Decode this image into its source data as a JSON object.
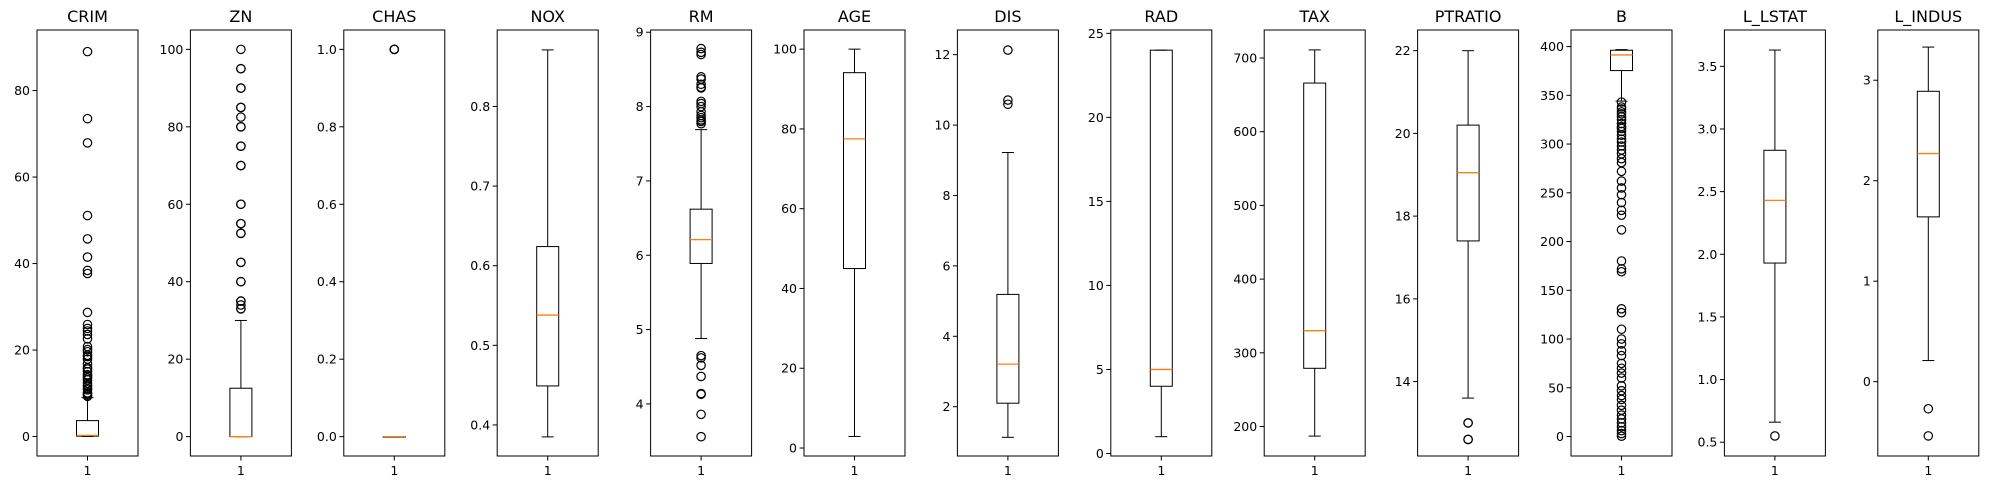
{
  "chart_data": [
    {
      "type": "box",
      "title": "CRIM",
      "x_tick_labels": [
        "1"
      ],
      "ylim": [
        -4.5,
        94
      ],
      "yticks": [
        0,
        20,
        40,
        60,
        80
      ],
      "box": {
        "whislo": 0.01,
        "q1": 0.08,
        "median": 0.26,
        "q3": 3.68,
        "whishi": 8.98
      },
      "fliers": [
        89.0,
        73.5,
        67.9,
        51.1,
        45.7,
        41.5,
        38.4,
        37.7,
        28.7,
        25.9,
        25.0,
        24.4,
        23.6,
        22.6,
        20.8,
        20.1,
        19.6,
        18.8,
        18.5,
        17.9,
        16.8,
        15.9,
        15.6,
        15.0,
        14.3,
        14.0,
        13.5,
        13.1,
        12.3,
        11.9,
        11.6,
        11.1,
        10.8,
        10.1,
        9.9,
        9.6,
        9.3
      ]
    },
    {
      "type": "box",
      "title": "ZN",
      "x_tick_labels": [
        "1"
      ],
      "ylim": [
        -5,
        105
      ],
      "yticks": [
        0,
        20,
        40,
        60,
        80,
        100
      ],
      "box": {
        "whislo": 0,
        "q1": 0,
        "median": 0,
        "q3": 12.5,
        "whishi": 30
      },
      "fliers": [
        100,
        95,
        95,
        90,
        90,
        85,
        85,
        82.5,
        80,
        80,
        75,
        75,
        70,
        70,
        60,
        60,
        55,
        55,
        52.5,
        52.5,
        45,
        45,
        40,
        40,
        35,
        35,
        34,
        33,
        33
      ]
    },
    {
      "type": "box",
      "title": "CHAS",
      "x_tick_labels": [
        "1"
      ],
      "ylim": [
        -0.05,
        1.05
      ],
      "yticks": [
        0.0,
        0.2,
        0.4,
        0.6,
        0.8,
        1.0
      ],
      "box": {
        "whislo": 0,
        "q1": 0,
        "median": 0,
        "q3": 0,
        "whishi": 0
      },
      "fliers": [
        1.0,
        1.0,
        1.0
      ]
    },
    {
      "type": "box",
      "title": "NOX",
      "x_tick_labels": [
        "1"
      ],
      "ylim": [
        0.361,
        0.896
      ],
      "yticks": [
        0.4,
        0.5,
        0.6,
        0.7,
        0.8
      ],
      "box": {
        "whislo": 0.385,
        "q1": 0.449,
        "median": 0.538,
        "q3": 0.624,
        "whishi": 0.871
      },
      "fliers": []
    },
    {
      "type": "box",
      "title": "RM",
      "x_tick_labels": [
        "1"
      ],
      "ylim": [
        3.3,
        9.03
      ],
      "yticks": [
        4,
        5,
        6,
        7,
        8,
        9
      ],
      "box": {
        "whislo": 4.88,
        "q1": 5.89,
        "median": 6.21,
        "q3": 6.62,
        "whishi": 7.69
      },
      "fliers": [
        8.78,
        8.73,
        8.7,
        8.4,
        8.37,
        8.3,
        8.26,
        8.25,
        8.07,
        8.04,
        8.0,
        7.93,
        7.88,
        7.85,
        7.82,
        7.8,
        7.77,
        4.65,
        4.62,
        4.52,
        4.37,
        4.14,
        4.13,
        3.86,
        3.56
      ]
    },
    {
      "type": "box",
      "title": "AGE",
      "x_tick_labels": [
        "1"
      ],
      "ylim": [
        -2,
        104.8
      ],
      "yticks": [
        0,
        20,
        40,
        60,
        80,
        100
      ],
      "box": {
        "whislo": 2.9,
        "q1": 45.0,
        "median": 77.5,
        "q3": 94.1,
        "whishi": 100
      },
      "fliers": []
    },
    {
      "type": "box",
      "title": "DIS",
      "x_tick_labels": [
        "1"
      ],
      "ylim": [
        0.6,
        12.7
      ],
      "yticks": [
        2,
        4,
        6,
        8,
        10,
        12
      ],
      "box": {
        "whislo": 1.13,
        "q1": 2.1,
        "median": 3.21,
        "q3": 5.19,
        "whishi": 9.22
      },
      "fliers": [
        12.13,
        10.71,
        10.59
      ]
    },
    {
      "type": "box",
      "title": "RAD",
      "x_tick_labels": [
        "1"
      ],
      "ylim": [
        -0.15,
        25.2
      ],
      "yticks": [
        0,
        5,
        10,
        15,
        20,
        25
      ],
      "box": {
        "whislo": 1,
        "q1": 4,
        "median": 5,
        "q3": 24,
        "whishi": 24
      },
      "fliers": []
    },
    {
      "type": "box",
      "title": "TAX",
      "x_tick_labels": [
        "1"
      ],
      "ylim": [
        160,
        738
      ],
      "yticks": [
        200,
        300,
        400,
        500,
        600,
        700
      ],
      "box": {
        "whislo": 187,
        "q1": 279,
        "median": 330,
        "q3": 666,
        "whishi": 711
      },
      "fliers": []
    },
    {
      "type": "box",
      "title": "PTRATIO",
      "x_tick_labels": [
        "1"
      ],
      "ylim": [
        12.2,
        22.5
      ],
      "yticks": [
        14,
        16,
        18,
        20,
        22
      ],
      "box": {
        "whislo": 13.6,
        "q1": 17.4,
        "median": 19.05,
        "q3": 20.2,
        "whishi": 22.0
      },
      "fliers": [
        13.0,
        13.0,
        12.6,
        12.6
      ]
    },
    {
      "type": "box",
      "title": "B",
      "x_tick_labels": [
        "1"
      ],
      "ylim": [
        -20,
        417
      ],
      "yticks": [
        0,
        50,
        100,
        150,
        200,
        250,
        300,
        350,
        400
      ],
      "box": {
        "whislo": 344.05,
        "q1": 375.38,
        "median": 391.44,
        "q3": 396.23,
        "whishi": 396.9
      },
      "fliers": [
        343,
        338,
        336,
        333,
        331,
        328,
        325,
        321,
        318,
        316,
        313,
        309,
        305,
        302,
        298,
        294,
        290,
        285,
        281,
        272,
        262,
        255,
        248,
        240,
        232,
        227,
        212,
        180,
        172,
        169,
        131,
        127,
        110,
        100,
        95,
        88,
        83,
        75,
        70,
        65,
        60,
        52,
        47,
        42,
        38,
        32,
        27,
        22,
        18,
        14,
        10,
        6,
        3,
        0.3
      ]
    },
    {
      "type": "box",
      "title": "L_LSTAT",
      "x_tick_labels": [
        "1"
      ],
      "ylim": [
        0.39,
        3.79
      ],
      "yticks": [
        0.5,
        1.0,
        1.5,
        2.0,
        2.5,
        3.0,
        3.5
      ],
      "box": {
        "whislo": 0.66,
        "q1": 1.93,
        "median": 2.43,
        "q3": 2.83,
        "whishi": 3.63
      },
      "fliers": [
        0.55
      ]
    },
    {
      "type": "box",
      "title": "L_INDUS",
      "x_tick_labels": [
        "1"
      ],
      "ylim": [
        -0.74,
        3.5
      ],
      "yticks": [
        0,
        1,
        2,
        3
      ],
      "box": {
        "whislo": 0.21,
        "q1": 1.64,
        "median": 2.27,
        "q3": 2.89,
        "whishi": 3.33
      },
      "fliers": [
        -0.27,
        -0.54
      ]
    }
  ],
  "colors": {
    "median": "#ff7f0e",
    "box": "#000000",
    "background": "#ffffff"
  }
}
